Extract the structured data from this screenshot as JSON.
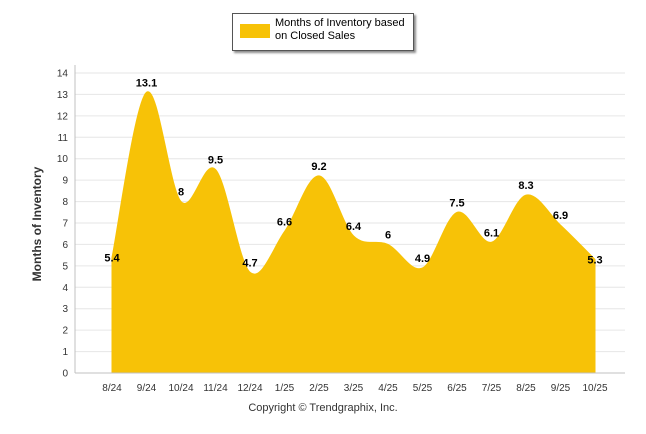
{
  "chart_data": {
    "type": "area",
    "categories": [
      "8/24",
      "9/24",
      "10/24",
      "11/24",
      "12/24",
      "1/25",
      "2/25",
      "3/25",
      "4/25",
      "5/25",
      "6/25",
      "7/25",
      "8/25",
      "9/25",
      "10/25"
    ],
    "series": [
      {
        "name": "Months of Inventory based on Closed Sales",
        "values": [
          5.4,
          13.1,
          8,
          9.5,
          4.7,
          6.6,
          9.2,
          6.4,
          6,
          4.9,
          7.5,
          6.1,
          8.3,
          6.9,
          5.3
        ],
        "color": "#F7C207"
      }
    ],
    "ylabel": "Months of Inventory",
    "xlabel": "",
    "ylim": [
      0,
      14
    ],
    "yticks": [
      0,
      1,
      2,
      3,
      4,
      5,
      6,
      7,
      8,
      9,
      10,
      11,
      12,
      13,
      14
    ],
    "grid": true,
    "legend_position": "top-center"
  },
  "footer": {
    "copyright": "Copyright © Trendgraphix, Inc."
  }
}
